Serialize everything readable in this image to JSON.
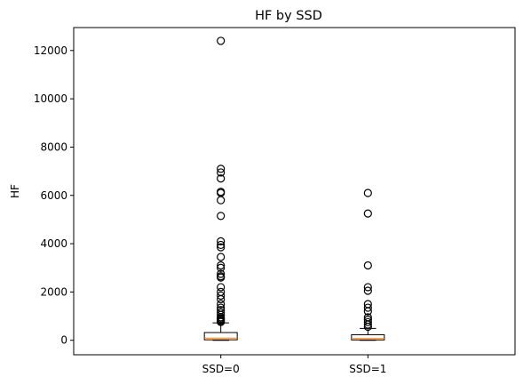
{
  "chart_data": {
    "type": "box",
    "title": "HF by SSD",
    "xlabel": "",
    "ylabel": "HF",
    "ylim": [
      -600,
      12950
    ],
    "yticks": [
      0,
      2000,
      4000,
      6000,
      8000,
      10000,
      12000
    ],
    "yticklabels": [
      "0",
      "2000",
      "4000",
      "6000",
      "8000",
      "10000",
      "12000"
    ],
    "grid": false,
    "colors": {
      "box": "#000000",
      "median": "#ff7f0e",
      "outlier": "#000000"
    },
    "categories": [
      "SSD=0",
      "SSD=1"
    ],
    "boxes": [
      {
        "label": "SSD=0",
        "whisker_low": 0,
        "q1": 20,
        "median": 90,
        "q3": 320,
        "whisker_high": 720,
        "outliers": [
          12400,
          7100,
          6950,
          6700,
          6150,
          6100,
          5800,
          5150,
          4100,
          3950,
          3850,
          3450,
          3100,
          3000,
          2750,
          2650,
          2600,
          2200,
          2000,
          1850,
          1700,
          1500,
          1350,
          1250,
          1150,
          1050,
          950,
          900,
          850,
          800,
          760
        ]
      },
      {
        "label": "SSD=1",
        "whisker_low": 0,
        "q1": 15,
        "median": 70,
        "q3": 230,
        "whisker_high": 490,
        "outliers": [
          6100,
          5250,
          3100,
          2200,
          2050,
          1500,
          1350,
          1200,
          950,
          850,
          750,
          650,
          560
        ]
      }
    ]
  }
}
